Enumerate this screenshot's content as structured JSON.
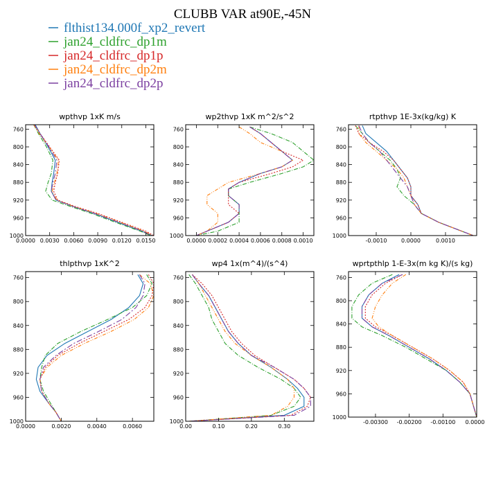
{
  "figure": {
    "title": "CLUBB VAR at90E,-45N",
    "legend": [
      {
        "label": "flthist134.000f_xp2_revert",
        "color": "#1f77b4",
        "dash": ""
      },
      {
        "label": "jan24_cldfrc_dp1m",
        "color": "#2ca02c",
        "dash": "6,2,1,2"
      },
      {
        "label": "jan24_cldfrc_dp1p",
        "color": "#d62728",
        "dash": "2,2"
      },
      {
        "label": "jan24_cldfrc_dp2m",
        "color": "#ff7f0e",
        "dash": "5,2,1,2,1,2"
      },
      {
        "label": "jan24_cldfrc_dp2p",
        "color": "#7b3fa0",
        "dash": "8,3,2,3"
      }
    ]
  },
  "chart_data": [
    {
      "type": "line",
      "title": "wpthvp  1xK m/s",
      "xlim": [
        0.0,
        0.016
      ],
      "ylim": [
        750,
        1000
      ],
      "xticks": [
        0.0,
        0.003,
        0.006,
        0.009,
        0.012,
        0.015
      ],
      "xticklabels": [
        "0.0000",
        "0.0030",
        "0.0060",
        "0.0090",
        "0.0120",
        "0.0150"
      ],
      "yticks": [
        760,
        800,
        840,
        880,
        920,
        960,
        1000
      ],
      "yticklabels": [
        "760",
        "800",
        "840",
        "880",
        "920",
        "960",
        "1000"
      ],
      "y": [
        750,
        770,
        800,
        830,
        860,
        880,
        900,
        920,
        935,
        950,
        970,
        990,
        1000
      ],
      "series": [
        {
          "name": "flthist134.000f_xp2_revert",
          "values": [
            0.0012,
            0.0018,
            0.0028,
            0.0037,
            0.0035,
            0.0033,
            0.0032,
            0.0038,
            0.006,
            0.0085,
            0.0115,
            0.0145,
            0.0158
          ]
        },
        {
          "name": "jan24_cldfrc_dp1m",
          "values": [
            0.001,
            0.0016,
            0.0026,
            0.0034,
            0.0032,
            0.0028,
            0.0025,
            0.0033,
            0.0057,
            0.0082,
            0.0112,
            0.0143,
            0.0156
          ]
        },
        {
          "name": "jan24_cldfrc_dp1p",
          "values": [
            0.0011,
            0.0018,
            0.003,
            0.0042,
            0.004,
            0.0037,
            0.0035,
            0.004,
            0.0063,
            0.009,
            0.012,
            0.015,
            0.016
          ]
        },
        {
          "name": "jan24_cldfrc_dp2m",
          "values": [
            0.001,
            0.0017,
            0.0029,
            0.0041,
            0.0039,
            0.0036,
            0.0033,
            0.0039,
            0.0061,
            0.0088,
            0.0118,
            0.0148,
            0.0158
          ]
        },
        {
          "name": "jan24_cldfrc_dp2p",
          "values": [
            0.0011,
            0.0018,
            0.0029,
            0.0039,
            0.0037,
            0.0034,
            0.0032,
            0.0038,
            0.006,
            0.0086,
            0.0116,
            0.0146,
            0.0157
          ]
        }
      ]
    },
    {
      "type": "line",
      "title": "wp2thvp  1xK m^2/s^2",
      "xlim": [
        -0.0001,
        0.0011
      ],
      "ylim": [
        750,
        1000
      ],
      "xticks": [
        0.0,
        0.0002,
        0.0004,
        0.0006,
        0.0008,
        0.001
      ],
      "xticklabels": [
        "0.0000",
        "0.0002",
        "0.0004",
        "0.0006",
        "0.0008",
        "0.0010"
      ],
      "yticks": [
        760,
        800,
        840,
        880,
        920,
        960,
        1000
      ],
      "yticklabels": [
        "760",
        "800",
        "840",
        "880",
        "920",
        "960",
        "1000"
      ],
      "y": [
        755,
        770,
        790,
        810,
        830,
        845,
        860,
        880,
        895,
        910,
        930,
        950,
        970,
        990,
        1000
      ],
      "series": [
        {
          "name": "flthist134.000f_xp2_revert",
          "values": [
            0.0005,
            0.0006,
            0.0007,
            0.0008,
            0.0009,
            0.0008,
            0.0006,
            0.0004,
            0.0003,
            0.0003,
            0.0004,
            0.0004,
            0.0003,
            0.0001,
            0.0
          ]
        },
        {
          "name": "jan24_cldfrc_dp1m",
          "values": [
            0.0005,
            0.0007,
            0.0009,
            0.001,
            0.0011,
            0.001,
            0.0008,
            0.0005,
            0.0003,
            0.0003,
            0.0004,
            0.0004,
            0.0004,
            0.0002,
            0.0
          ]
        },
        {
          "name": "jan24_cldfrc_dp1p",
          "values": [
            0.0005,
            0.0006,
            0.0007,
            0.0008,
            0.001,
            0.0009,
            0.0007,
            0.0004,
            0.0003,
            0.0003,
            0.0003,
            0.0004,
            0.0003,
            0.0001,
            0.0
          ]
        },
        {
          "name": "jan24_cldfrc_dp2m",
          "values": [
            0.0004,
            0.0005,
            0.0006,
            0.0008,
            0.0009,
            0.0008,
            0.0006,
            0.0003,
            0.0002,
            0.0001,
            0.0001,
            0.0002,
            0.0002,
            0.0001,
            0.0
          ]
        },
        {
          "name": "jan24_cldfrc_dp2p",
          "values": [
            0.0005,
            0.0006,
            0.0007,
            0.0008,
            0.0009,
            0.0008,
            0.0006,
            0.0004,
            0.0003,
            0.0003,
            0.0004,
            0.0004,
            0.0003,
            0.0001,
            0.0
          ]
        }
      ]
    },
    {
      "type": "line",
      "title": "rtpthvp  1E-3x(kg/kg) K",
      "xlim": [
        -0.0018,
        0.0019
      ],
      "ylim": [
        750,
        1000
      ],
      "xticks": [
        -0.001,
        0.0,
        0.001
      ],
      "xticklabels": [
        "-0.0010",
        "0.0000",
        "0.0010"
      ],
      "yticks": [
        760,
        800,
        840,
        880,
        920,
        960,
        1000
      ],
      "yticklabels": [
        "760",
        "800",
        "840",
        "880",
        "920",
        "960",
        "1000"
      ],
      "y": [
        752,
        770,
        790,
        810,
        830,
        850,
        870,
        890,
        910,
        930,
        950,
        970,
        985,
        1000
      ],
      "series": [
        {
          "name": "flthist134.000f_xp2_revert",
          "values": [
            -0.0014,
            -0.0013,
            -0.001,
            -0.0007,
            -0.0005,
            -0.0003,
            -0.0001,
            0.0,
            0.0,
            0.0002,
            0.0003,
            0.0008,
            0.0013,
            0.0018
          ]
        },
        {
          "name": "jan24_cldfrc_dp1m",
          "values": [
            -0.0016,
            -0.0014,
            -0.0012,
            -0.0009,
            -0.0006,
            -0.0004,
            -0.0003,
            -0.0004,
            -0.0002,
            0.0001,
            0.0003,
            0.0008,
            0.0013,
            0.0018
          ]
        },
        {
          "name": "jan24_cldfrc_dp1p",
          "values": [
            -0.0016,
            -0.0015,
            -0.0012,
            -0.0008,
            -0.0005,
            -0.0003,
            -0.0001,
            0.0,
            0.0,
            0.0002,
            0.0003,
            0.0008,
            0.0013,
            0.0018
          ]
        },
        {
          "name": "jan24_cldfrc_dp2m",
          "values": [
            -0.0015,
            -0.0015,
            -0.0013,
            -0.001,
            -0.0007,
            -0.0004,
            -0.0002,
            -0.0001,
            0.0,
            0.0001,
            0.0003,
            0.0008,
            0.0013,
            0.0018
          ]
        },
        {
          "name": "jan24_cldfrc_dp2p",
          "values": [
            -0.0015,
            -0.0014,
            -0.0012,
            -0.0009,
            -0.0007,
            -0.0005,
            -0.0003,
            -0.0001,
            0.0,
            0.0001,
            0.0003,
            0.0008,
            0.0013,
            0.0018
          ]
        }
      ]
    },
    {
      "type": "line",
      "title": "thlpthvp  1xK^2",
      "xlim": [
        0.0,
        0.0072
      ],
      "ylim": [
        750,
        1000
      ],
      "xticks": [
        0.0,
        0.002,
        0.004,
        0.006
      ],
      "xticklabels": [
        "0.0000",
        "0.0020",
        "0.0040",
        "0.0060"
      ],
      "yticks": [
        760,
        800,
        840,
        880,
        920,
        960,
        1000
      ],
      "yticklabels": [
        "760",
        "800",
        "840",
        "880",
        "920",
        "960",
        "1000"
      ],
      "y": [
        755,
        770,
        790,
        810,
        830,
        850,
        870,
        890,
        910,
        930,
        950,
        970,
        985,
        1000
      ],
      "series": [
        {
          "name": "flthist134.000f_xp2_revert",
          "values": [
            0.0063,
            0.0066,
            0.0064,
            0.0058,
            0.0048,
            0.0035,
            0.0022,
            0.0012,
            0.0007,
            0.0006,
            0.0008,
            0.0013,
            0.0017,
            0.002
          ]
        },
        {
          "name": "jan24_cldfrc_dp1m",
          "values": [
            0.0068,
            0.0071,
            0.0068,
            0.006,
            0.0046,
            0.0031,
            0.0018,
            0.0011,
            0.0009,
            0.0008,
            0.001,
            0.0014,
            0.0017,
            0.002
          ]
        },
        {
          "name": "jan24_cldfrc_dp1p",
          "values": [
            0.0069,
            0.0072,
            0.0071,
            0.0067,
            0.0058,
            0.0044,
            0.003,
            0.0018,
            0.0011,
            0.0008,
            0.0009,
            0.0013,
            0.0017,
            0.002
          ]
        },
        {
          "name": "jan24_cldfrc_dp2m",
          "values": [
            0.0064,
            0.007,
            0.0072,
            0.0069,
            0.0061,
            0.0048,
            0.0033,
            0.002,
            0.0012,
            0.0008,
            0.0009,
            0.0013,
            0.0017,
            0.002
          ]
        },
        {
          "name": "jan24_cldfrc_dp2p",
          "values": [
            0.0064,
            0.0067,
            0.0066,
            0.0062,
            0.0054,
            0.0041,
            0.0027,
            0.0017,
            0.001,
            0.0008,
            0.0009,
            0.0013,
            0.0017,
            0.002
          ]
        }
      ]
    },
    {
      "type": "line",
      "title": "wp4  1x(m^4)/(s^4)",
      "xlim": [
        0.0,
        0.39
      ],
      "ylim": [
        750,
        1000
      ],
      "xticks": [
        0.0,
        0.1,
        0.2,
        0.3
      ],
      "xticklabels": [
        "0.00",
        "0.10",
        "0.20",
        "0.30"
      ],
      "yticks": [
        760,
        800,
        840,
        880,
        920,
        960,
        1000
      ],
      "yticklabels": [
        "760",
        "800",
        "840",
        "880",
        "920",
        "960",
        "1000"
      ],
      "y": [
        755,
        770,
        790,
        810,
        830,
        850,
        870,
        890,
        910,
        930,
        945,
        960,
        975,
        990,
        1000
      ],
      "series": [
        {
          "name": "flthist134.000f_xp2_revert",
          "values": [
            0.02,
            0.04,
            0.07,
            0.09,
            0.11,
            0.13,
            0.16,
            0.2,
            0.26,
            0.31,
            0.34,
            0.36,
            0.36,
            0.3,
            0.01
          ]
        },
        {
          "name": "jan24_cldfrc_dp1m",
          "values": [
            0.01,
            0.03,
            0.05,
            0.07,
            0.08,
            0.1,
            0.12,
            0.16,
            0.22,
            0.29,
            0.33,
            0.35,
            0.33,
            0.26,
            0.01
          ]
        },
        {
          "name": "jan24_cldfrc_dp1p",
          "values": [
            0.02,
            0.05,
            0.08,
            0.1,
            0.12,
            0.14,
            0.17,
            0.21,
            0.27,
            0.33,
            0.36,
            0.38,
            0.37,
            0.32,
            0.01
          ]
        },
        {
          "name": "jan24_cldfrc_dp2m",
          "values": [
            0.02,
            0.04,
            0.06,
            0.08,
            0.1,
            0.12,
            0.15,
            0.2,
            0.26,
            0.31,
            0.33,
            0.33,
            0.31,
            0.26,
            0.01
          ]
        },
        {
          "name": "jan24_cldfrc_dp2p",
          "values": [
            0.02,
            0.04,
            0.07,
            0.09,
            0.11,
            0.13,
            0.16,
            0.2,
            0.27,
            0.33,
            0.36,
            0.38,
            0.38,
            0.33,
            0.01
          ]
        }
      ]
    },
    {
      "type": "line",
      "title": "wprtpthlp  1-E-3x(m kg K)/(s kg)",
      "xlim": [
        -0.0038,
        0.0
      ],
      "ylim": [
        750,
        1000
      ],
      "xticks": [
        -0.003,
        -0.002,
        -0.001,
        0.0
      ],
      "xticklabels": [
        "-0.00300",
        "-0.00200",
        "-0.00100",
        "0.00000"
      ],
      "yticks": [
        760,
        800,
        840,
        880,
        920,
        960,
        1000
      ],
      "yticklabels": [
        "760",
        "800",
        "840",
        "880",
        "920",
        "960",
        "1000"
      ],
      "y": [
        755,
        770,
        790,
        810,
        830,
        845,
        860,
        880,
        900,
        920,
        940,
        960,
        980,
        1000
      ],
      "series": [
        {
          "name": "flthist134.000f_xp2_revert",
          "values": [
            -0.0023,
            -0.0028,
            -0.0032,
            -0.0034,
            -0.0034,
            -0.0031,
            -0.0026,
            -0.002,
            -0.0014,
            -0.0009,
            -0.0005,
            -0.0002,
            -0.0001,
            0.0
          ]
        },
        {
          "name": "jan24_cldfrc_dp1m",
          "values": [
            -0.0025,
            -0.0031,
            -0.0035,
            -0.0037,
            -0.0037,
            -0.0034,
            -0.0028,
            -0.0021,
            -0.0015,
            -0.0009,
            -0.0005,
            -0.0002,
            -0.0001,
            0.0
          ]
        },
        {
          "name": "jan24_cldfrc_dp1p",
          "values": [
            -0.0022,
            -0.0027,
            -0.0031,
            -0.0033,
            -0.0033,
            -0.003,
            -0.0025,
            -0.0019,
            -0.0013,
            -0.0008,
            -0.0004,
            -0.0002,
            -0.0001,
            0.0
          ]
        },
        {
          "name": "jan24_cldfrc_dp2m",
          "values": [
            -0.0021,
            -0.0025,
            -0.0028,
            -0.003,
            -0.0031,
            -0.0029,
            -0.0025,
            -0.0019,
            -0.0013,
            -0.0008,
            -0.0004,
            -0.0002,
            -0.0001,
            0.0
          ]
        },
        {
          "name": "jan24_cldfrc_dp2p",
          "values": [
            -0.0022,
            -0.0028,
            -0.0032,
            -0.0034,
            -0.0034,
            -0.0031,
            -0.0026,
            -0.002,
            -0.0014,
            -0.0009,
            -0.0005,
            -0.0002,
            -0.0001,
            0.0
          ]
        }
      ]
    }
  ]
}
